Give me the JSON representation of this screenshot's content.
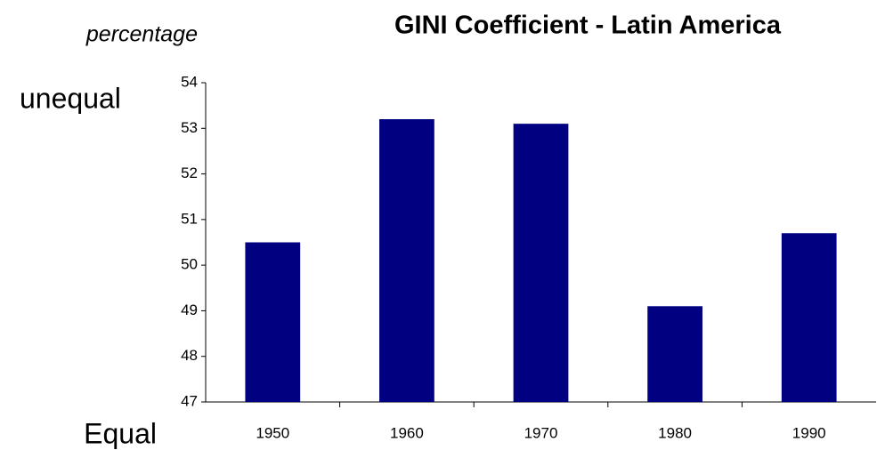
{
  "chart_data": {
    "type": "bar",
    "title": "GINI Coefficient  - Latin America",
    "ylabel": "percentage",
    "annotations": [
      "unequal",
      "Equal"
    ],
    "categories": [
      "1950",
      "1960",
      "1970",
      "1980",
      "1990"
    ],
    "values": [
      50.5,
      53.2,
      53.1,
      49.1,
      50.7
    ],
    "color": "#000080",
    "ylim": [
      47,
      54
    ],
    "yticks": [
      47,
      48,
      49,
      50,
      51,
      52,
      53,
      54
    ],
    "grid": false
  }
}
